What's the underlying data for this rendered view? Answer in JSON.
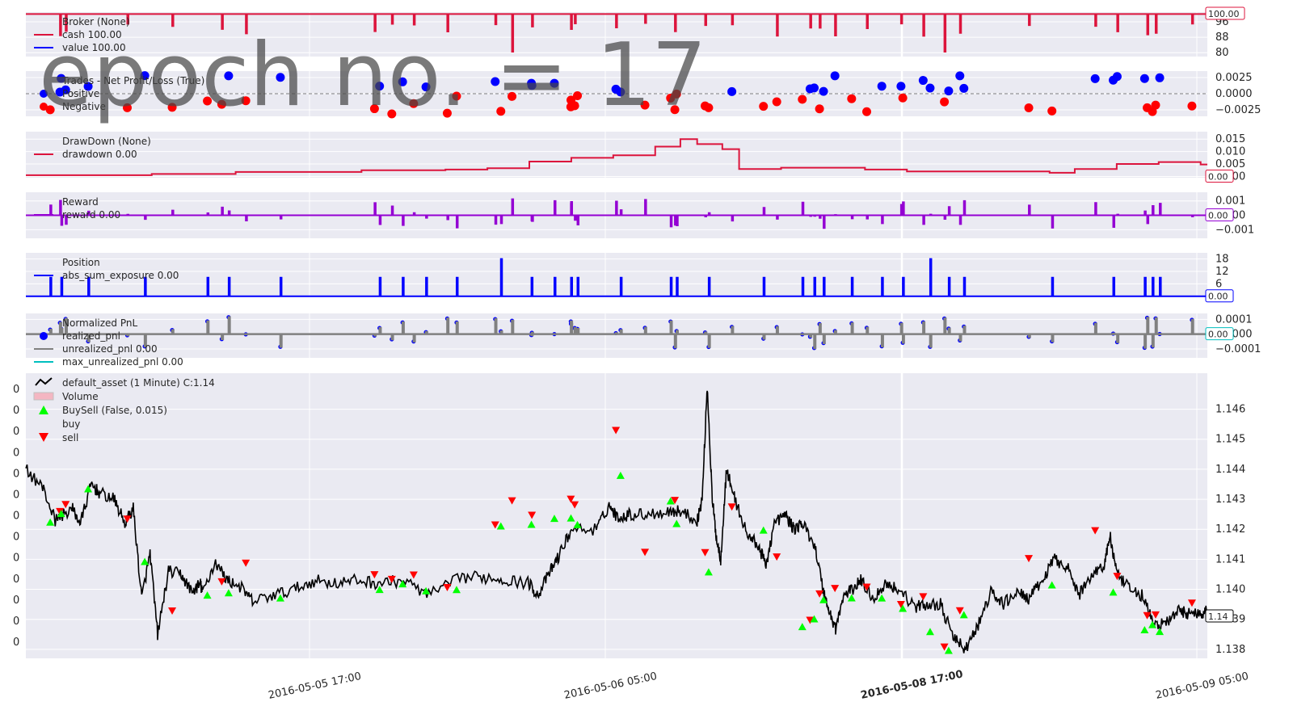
{
  "watermark": "epoch no. = 17",
  "chart_data": {
    "type": "line",
    "title": "",
    "x_tick_labels": [
      "2016-05-05 17:00",
      "2016-05-06 05:00",
      "2016-05-08 17:00",
      "2016-05-09 05:00"
    ],
    "grid": true,
    "panels": [
      {
        "id": "broker",
        "legend": [
          {
            "text": "Broker (None)",
            "marker": "none"
          },
          {
            "text": "cash 100.00",
            "marker": "line",
            "color": "#dc143c"
          },
          {
            "text": "value 100.00",
            "marker": "line",
            "color": "#0000ff"
          }
        ],
        "y_ticks": [
          {
            "value": 80,
            "label": "80"
          },
          {
            "value": 88,
            "label": "88"
          },
          {
            "value": 96,
            "label": "96"
          }
        ],
        "ylim": [
          78,
          101
        ],
        "last_value_label": "100.00",
        "last_value_color": "#dc143c",
        "series": [
          {
            "name": "cash",
            "color": "#dc143c",
            "baseline": 100,
            "dip_min": 84
          }
        ]
      },
      {
        "id": "trades",
        "legend": [
          {
            "text": "Trades - Net Profit/Loss (True)",
            "marker": "none"
          },
          {
            "text": "Positive",
            "marker": "dot",
            "color": "#0000ff"
          },
          {
            "text": "Negative",
            "marker": "dot",
            "color": "#ff0000"
          }
        ],
        "y_ticks": [
          {
            "value": 0.0025,
            "label": "0.0025"
          },
          {
            "value": 0,
            "label": "0.0000"
          },
          {
            "value": -0.0025,
            "label": "−0.0025"
          }
        ],
        "ylim": [
          -0.0035,
          0.0035
        ],
        "positive_color": "#0000ff",
        "negative_color": "#ff0000"
      },
      {
        "id": "drawdown",
        "legend": [
          {
            "text": "DrawDown (None)",
            "marker": "none"
          },
          {
            "text": "drawdown 0.00",
            "marker": "line",
            "color": "#dc143c"
          }
        ],
        "y_ticks": [
          {
            "value": 0.015,
            "label": "0.015"
          },
          {
            "value": 0.01,
            "label": "0.010"
          },
          {
            "value": 0.005,
            "label": "0.005"
          },
          {
            "value": 0,
            "label": "0.000"
          }
        ],
        "ylim": [
          -0.0005,
          0.018
        ],
        "last_value_label": "0.00",
        "last_value_color": "#dc143c",
        "series": [
          {
            "name": "drawdown",
            "color": "#dc143c"
          }
        ]
      },
      {
        "id": "reward",
        "legend": [
          {
            "text": "Reward",
            "marker": "none"
          },
          {
            "text": "reward 0.00",
            "marker": "line",
            "color": "#9400d3"
          }
        ],
        "y_ticks": [
          {
            "value": 0.001,
            "label": "0.001"
          },
          {
            "value": 0,
            "label": "0.000"
          },
          {
            "value": -0.001,
            "label": "−0.001"
          }
        ],
        "ylim": [
          -0.0016,
          0.0016
        ],
        "last_value_label": "0.00",
        "last_value_color": "#9400d3",
        "series": [
          {
            "name": "reward",
            "color": "#9400d3"
          }
        ]
      },
      {
        "id": "position",
        "legend": [
          {
            "text": "Position",
            "marker": "none"
          },
          {
            "text": "abs_sum_exposure 0.00",
            "marker": "line",
            "color": "#0000ff"
          }
        ],
        "y_ticks": [
          {
            "value": 18,
            "label": "18"
          },
          {
            "value": 12,
            "label": "12"
          },
          {
            "value": 6,
            "label": "6"
          }
        ],
        "ylim": [
          -0.5,
          21
        ],
        "last_value_label": "0.00",
        "last_value_color": "#0000ff",
        "series": [
          {
            "name": "abs_sum_exposure",
            "color": "#0000ff"
          }
        ]
      },
      {
        "id": "pnl",
        "legend": [
          {
            "text": "Normalized PnL",
            "marker": "none"
          },
          {
            "text": "realized_pnl",
            "marker": "dot",
            "color": "#0000ff"
          },
          {
            "text": "unrealized_pnl 0.00",
            "marker": "line",
            "color": "#808080"
          },
          {
            "text": "max_unrealized_pnl 0.00",
            "marker": "line",
            "color": "#00bfbf"
          }
        ],
        "y_ticks": [
          {
            "value": 0.0001,
            "label": "0.0001"
          },
          {
            "value": 0,
            "label": "0.0000"
          },
          {
            "value": -0.0001,
            "label": "−0.0001"
          }
        ],
        "ylim": [
          -0.00016,
          0.00014
        ],
        "last_value_label": "0.00",
        "last_value_color": "#00bfbf",
        "series": [
          {
            "name": "unrealized_pnl",
            "color": "#808080"
          },
          {
            "name": "max_unrealized_pnl",
            "color": "#00bfbf"
          }
        ]
      },
      {
        "id": "price",
        "legend": [
          {
            "text": "default_asset (1 Minute) C:1.14",
            "marker": "zigzag",
            "color": "#000000"
          },
          {
            "text": "Volume",
            "marker": "box",
            "color": "#f4b6c2"
          },
          {
            "text": "BuySell (False, 0.015)",
            "marker": "up",
            "color": "#00ff00"
          },
          {
            "text": "buy",
            "marker": "none"
          },
          {
            "text": "sell",
            "marker": "down",
            "color": "#ff0000"
          }
        ],
        "left_ticks": [
          "0",
          "0",
          "0",
          "0",
          "0",
          "0",
          "0",
          "0",
          "0",
          "0",
          "0",
          "0",
          "0"
        ],
        "y_ticks": [
          {
            "value": 1.146,
            "label": "1.146"
          },
          {
            "value": 1.145,
            "label": "1.145"
          },
          {
            "value": 1.144,
            "label": "1.144"
          },
          {
            "value": 1.143,
            "label": "1.143"
          },
          {
            "value": 1.142,
            "label": "1.142"
          },
          {
            "value": 1.141,
            "label": "1.141"
          },
          {
            "value": 1.14,
            "label": "1.140"
          },
          {
            "value": 1.139,
            "label": "1.139"
          },
          {
            "value": 1.138,
            "label": "1.138"
          }
        ],
        "ylim": [
          1.1377,
          1.1472
        ],
        "last_value_label": "1.14",
        "last_value_color": "#000000",
        "series": [
          {
            "name": "default_asset close",
            "color": "#000000",
            "anchors": [
              [
                0,
                1.144
              ],
              [
                0.02,
                1.1434
              ],
              [
                0.035,
                1.1423
              ],
              [
                0.055,
                1.1427
              ],
              [
                0.065,
                1.1422
              ],
              [
                0.078,
                1.1435
              ],
              [
                0.088,
                1.1432
              ],
              [
                0.105,
                1.143
              ],
              [
                0.118,
                1.1422
              ],
              [
                0.128,
                1.1427
              ],
              [
                0.138,
                1.1397
              ],
              [
                0.148,
                1.1412
              ],
              [
                0.157,
                1.1385
              ],
              [
                0.17,
                1.1406
              ],
              [
                0.185,
                1.1405
              ],
              [
                0.198,
                1.1399
              ],
              [
                0.208,
                1.1402
              ],
              [
                0.21,
                1.1399
              ],
              [
                0.226,
                1.1409
              ],
              [
                0.24,
                1.1403
              ],
              [
                0.255,
                1.1401
              ],
              [
                0.27,
                1.1396
              ],
              [
                0.295,
                1.1398
              ],
              [
                0.32,
                1.14
              ],
              [
                0.345,
                1.1403
              ],
              [
                0.37,
                1.1402
              ],
              [
                0.395,
                1.1403
              ],
              [
                0.42,
                1.1402
              ],
              [
                0.45,
                1.1403
              ],
              [
                0.48,
                1.1398
              ],
              [
                0.52,
                1.1404
              ],
              [
                0.55,
                1.1404
              ],
              [
                0.575,
                1.1403
              ],
              [
                0.6,
                1.1402
              ],
              [
                0.61,
                1.1398
              ],
              [
                0.625,
                1.1406
              ],
              [
                0.635,
                1.1411
              ],
              [
                0.65,
                1.142
              ],
              [
                0.68,
                1.142
              ],
              [
                0.695,
                1.1428
              ],
              [
                0.705,
                1.1424
              ],
              [
                0.72,
                1.1425
              ],
              [
                0.74,
                1.1425
              ],
              [
                0.765,
                1.1426
              ],
              [
                0.78,
                1.1426
              ],
              [
                0.8,
                1.1423
              ],
              [
                0.806,
                1.143
              ],
              [
                0.812,
                1.1468
              ],
              [
                0.818,
                1.143
              ],
              [
                0.823,
                1.1417
              ],
              [
                0.828,
                1.141
              ],
              [
                0.835,
                1.144
              ],
              [
                0.845,
                1.143
              ],
              [
                0.86,
                1.1418
              ],
              [
                0.872,
                1.1415
              ],
              [
                0.882,
                1.1408
              ],
              [
                0.892,
                1.1422
              ],
              [
                0.905,
                1.1425
              ],
              [
                0.915,
                1.142
              ],
              [
                0.925,
                1.1422
              ],
              [
                0.94,
                1.1415
              ],
              [
                0.95,
                1.14
              ],
              [
                0.958,
                1.1392
              ],
              [
                0.965,
                1.1387
              ],
              [
                0.975,
                1.1398
              ],
              [
                0.985,
                1.14
              ],
              [
                0.995,
                1.1403
              ],
              [
                1.01,
                1.1397
              ],
              [
                1.025,
                1.1402
              ],
              [
                1.04,
                1.14
              ],
              [
                1.06,
                1.1394
              ],
              [
                1.075,
                1.1395
              ],
              [
                1.09,
                1.1395
              ],
              [
                1.105,
                1.1384
              ],
              [
                1.12,
                1.138
              ],
              [
                1.135,
                1.1388
              ],
              [
                1.15,
                1.1399
              ],
              [
                1.165,
                1.1395
              ],
              [
                1.18,
                1.1399
              ],
              [
                1.195,
                1.1397
              ],
              [
                1.21,
                1.1402
              ],
              [
                1.225,
                1.141
              ],
              [
                1.24,
                1.1408
              ],
              [
                1.255,
                1.1398
              ],
              [
                1.27,
                1.1405
              ],
              [
                1.285,
                1.1408
              ],
              [
                1.292,
                1.1418
              ],
              [
                1.3,
                1.1405
              ],
              [
                1.315,
                1.14
              ],
              [
                1.33,
                1.1398
              ],
              [
                1.345,
                1.1388
              ],
              [
                1.36,
                1.1389
              ],
              [
                1.375,
                1.1393
              ],
              [
                1.385,
                1.1392
              ],
              [
                1.4,
                1.1392
              ],
              [
                1.408,
                1.1393
              ]
            ]
          }
        ]
      }
    ]
  }
}
